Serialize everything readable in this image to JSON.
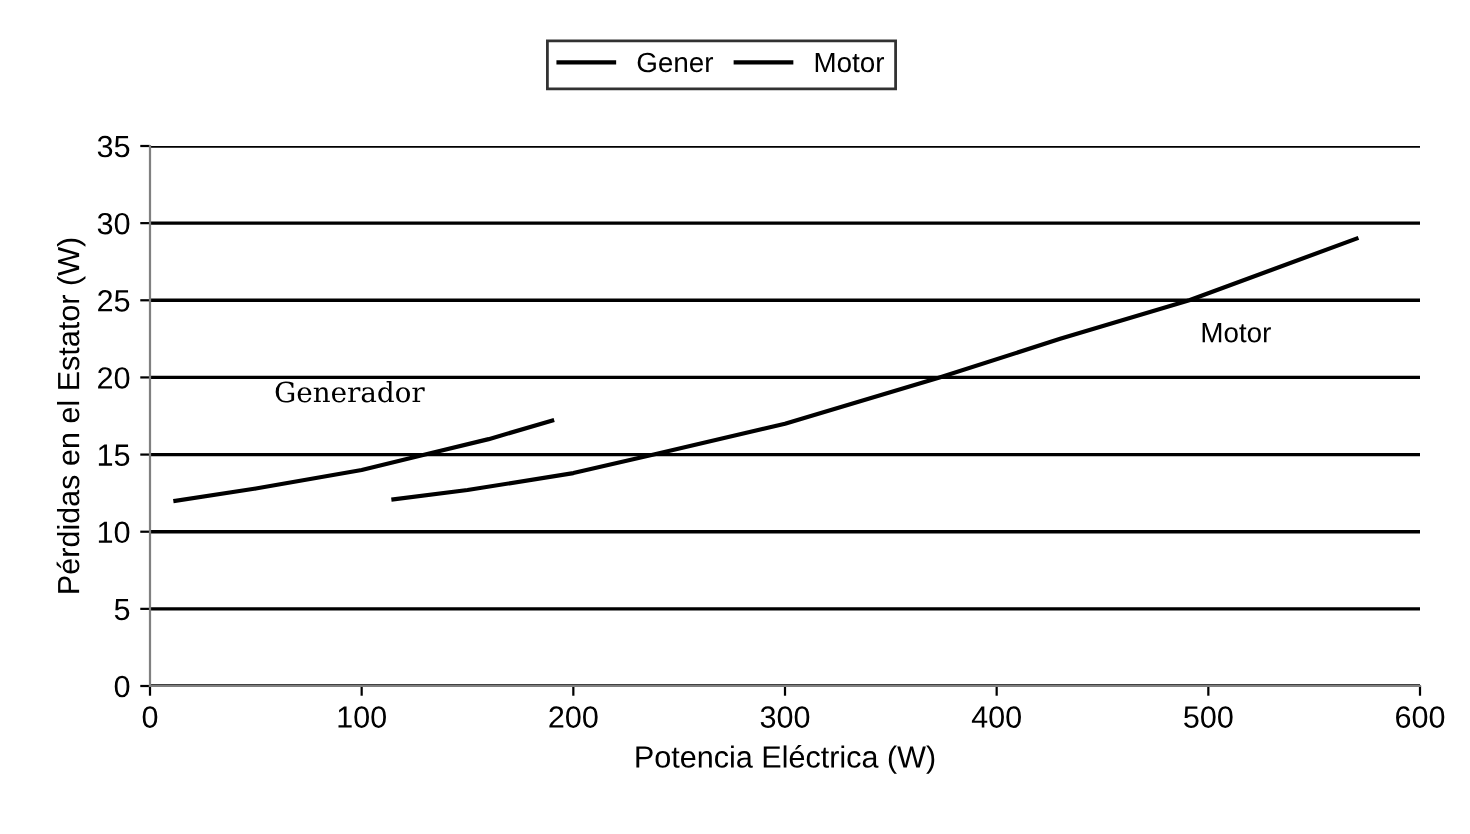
{
  "chart_data": {
    "type": "line",
    "xlabel": "Potencia Eléctrica (W)",
    "ylabel": "Pérdidas en el Estator (W)",
    "series": [
      {
        "name": "Gener",
        "color": "#000000",
        "x": [
          12,
          50,
          100,
          130,
          160,
          190
        ],
        "values": [
          12.0,
          12.8,
          14.0,
          15.0,
          16.0,
          17.2
        ]
      },
      {
        "name": "Motor",
        "color": "#000000",
        "x": [
          115,
          150,
          200,
          238,
          300,
          373,
          430,
          491,
          570
        ],
        "values": [
          12.1,
          12.7,
          13.8,
          15.0,
          17.0,
          20.0,
          22.5,
          25.0,
          29.0
        ]
      }
    ],
    "annotations": [
      "Generador",
      "Motor"
    ],
    "xlim": [
      0,
      600
    ],
    "xticks": [
      0,
      100,
      200,
      300,
      400,
      500,
      600
    ],
    "ylim": [
      0,
      35
    ],
    "yticks": [
      0,
      5,
      10,
      15,
      20,
      25,
      30,
      35
    ],
    "grid": "y",
    "legend": "top",
    "line_style": "solid"
  }
}
